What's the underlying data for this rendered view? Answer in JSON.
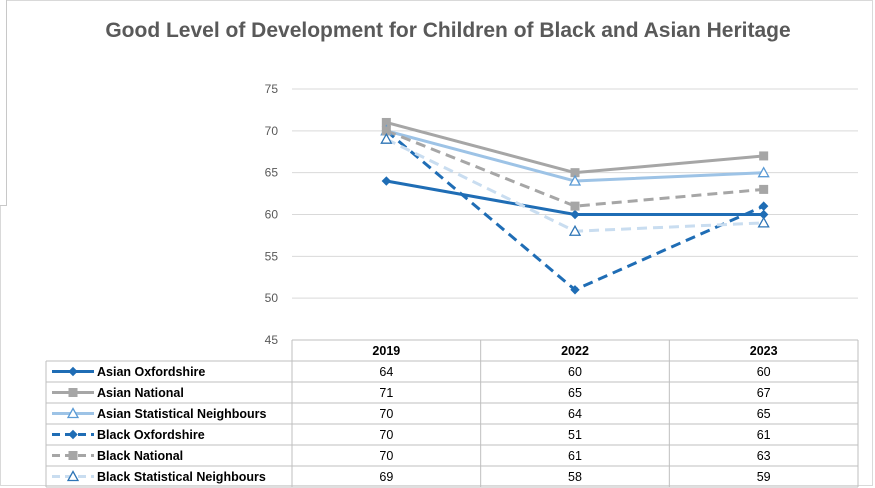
{
  "chart_data": {
    "type": "line",
    "title": "Good Level of Development for Children of Black and Asian Heritage",
    "categories": [
      "2019",
      "2022",
      "2023"
    ],
    "ylim": [
      45,
      75
    ],
    "yticks": [
      45,
      50,
      55,
      60,
      65,
      70,
      75
    ],
    "grid": true,
    "legend_placement": "data-table-left",
    "series": [
      {
        "name": "Asian Oxfordshire",
        "values": [
          64,
          60,
          60
        ],
        "color": "#1F6DB5",
        "dash": "solid",
        "marker": "diamond"
      },
      {
        "name": "Asian National",
        "values": [
          71,
          65,
          67
        ],
        "color": "#A6A6A6",
        "dash": "solid",
        "marker": "square"
      },
      {
        "name": "Asian Statistical Neighbours",
        "values": [
          70,
          64,
          65
        ],
        "color": "#9DC3E6",
        "dash": "solid",
        "marker": "triangle"
      },
      {
        "name": "Black Oxfordshire",
        "values": [
          70,
          51,
          61
        ],
        "color": "#1F6DB5",
        "dash": "dashed",
        "marker": "diamond"
      },
      {
        "name": "Black National",
        "values": [
          70,
          61,
          63
        ],
        "color": "#A6A6A6",
        "dash": "dashed",
        "marker": "square"
      },
      {
        "name": "Black Statistical Neighbours",
        "values": [
          69,
          58,
          59
        ],
        "color": "#C9DDF0",
        "dash": "dashed",
        "marker": "triangle"
      }
    ]
  }
}
